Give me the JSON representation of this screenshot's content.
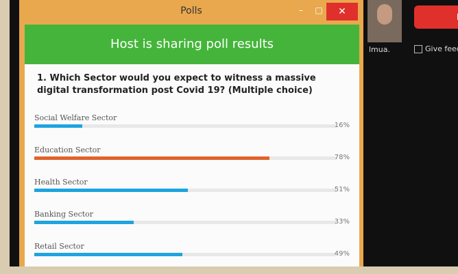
{
  "window": {
    "title": "Polls"
  },
  "banner": "Host is sharing poll results",
  "question": "1. Which Sector would you expect to witness a massive digital transformation post Covid 19? (Multiple choice)",
  "poll": {
    "options": [
      {
        "label": "Social Welfare Sector",
        "value": 16,
        "value_label": "16%",
        "color": "#1ea4df"
      },
      {
        "label": "Education Sector",
        "value": 78,
        "value_label": "78%",
        "color": "#e0632c"
      },
      {
        "label": "Health Sector",
        "value": 51,
        "value_label": "51%",
        "color": "#1ea4df"
      },
      {
        "label": "Banking Sector",
        "value": 33,
        "value_label": "33%",
        "color": "#1ea4df"
      },
      {
        "label": "Retail Sector",
        "value": 49,
        "value_label": "49%",
        "color": "#1ea4df"
      }
    ]
  },
  "side": {
    "participant": "lmua.",
    "checkbox": "Give feed",
    "button": "Le"
  }
}
